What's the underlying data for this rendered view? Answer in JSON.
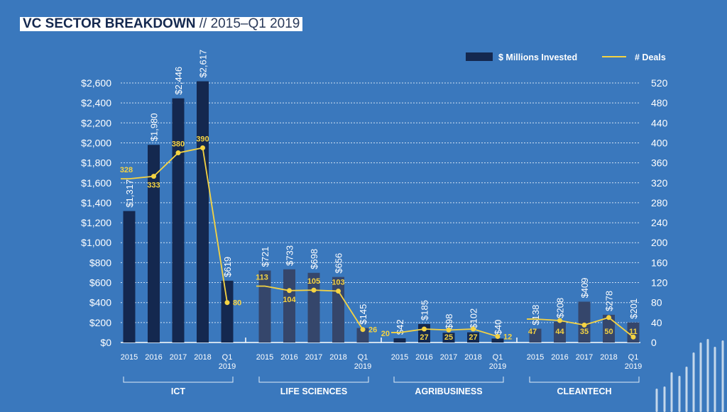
{
  "title": {
    "main": "VC SECTOR BREAKDOWN",
    "subtitle": " // 2015–Q1 2019"
  },
  "chart_data": {
    "type": "bar+line",
    "legend": {
      "position": "top-right",
      "bar_label": "$ Millions Invested",
      "line_label": "# Deals"
    },
    "left_axis": {
      "ylim": [
        0,
        2600
      ],
      "ticks": [
        "$0",
        "$200",
        "$400",
        "$600",
        "$800",
        "$1,000",
        "$1,200",
        "$1,400",
        "$1,600",
        "$1,800",
        "$2,000",
        "$2,200",
        "$2,400",
        "$2,600"
      ]
    },
    "right_axis": {
      "ylim": [
        0,
        520
      ],
      "ticks": [
        "0",
        "40",
        "80",
        "120",
        "160",
        "200",
        "240",
        "280",
        "320",
        "360",
        "400",
        "440",
        "480",
        "520"
      ]
    },
    "grid": true,
    "colors": {
      "background": "#3a78bd",
      "ict_bar": "#14284f",
      "other_bar": "#35466b",
      "agri_bar": "#14284f",
      "line": "#f5d342",
      "text": "#ffffff"
    },
    "groups": [
      {
        "name": "ICT",
        "categories": [
          "2015",
          "2016",
          "2017",
          "2018",
          "Q1 2019"
        ],
        "invested": [
          1317,
          1980,
          2446,
          2617,
          619
        ],
        "invested_labels": [
          "$1,317",
          "$1,980",
          "$2,446",
          "$2,617",
          "$619"
        ],
        "deals": [
          328,
          333,
          380,
          390,
          80
        ]
      },
      {
        "name": "LIFE SCIENCES",
        "categories": [
          "2015",
          "2016",
          "2017",
          "2018",
          "Q1 2019"
        ],
        "invested": [
          721,
          733,
          698,
          656,
          145
        ],
        "invested_labels": [
          "$721",
          "$733",
          "$698",
          "$656",
          "$145"
        ],
        "deals": [
          113,
          104,
          105,
          103,
          26
        ]
      },
      {
        "name": "AGRIBUSINESS",
        "categories": [
          "2015",
          "2016",
          "2017",
          "2018",
          "Q1 2019"
        ],
        "invested": [
          42,
          185,
          98,
          102,
          40
        ],
        "invested_labels": [
          "$42",
          "$185",
          "$98",
          "$102",
          "$40"
        ],
        "deals": [
          20,
          27,
          25,
          27,
          12
        ]
      },
      {
        "name": "CLEANTECH",
        "categories": [
          "2015",
          "2016",
          "2017",
          "2018",
          "Q1 2019"
        ],
        "invested": [
          138,
          208,
          409,
          278,
          201
        ],
        "invested_labels": [
          "$138",
          "$208",
          "$409",
          "$278",
          "$201"
        ],
        "deals": [
          47,
          44,
          35,
          50,
          11
        ]
      }
    ]
  }
}
